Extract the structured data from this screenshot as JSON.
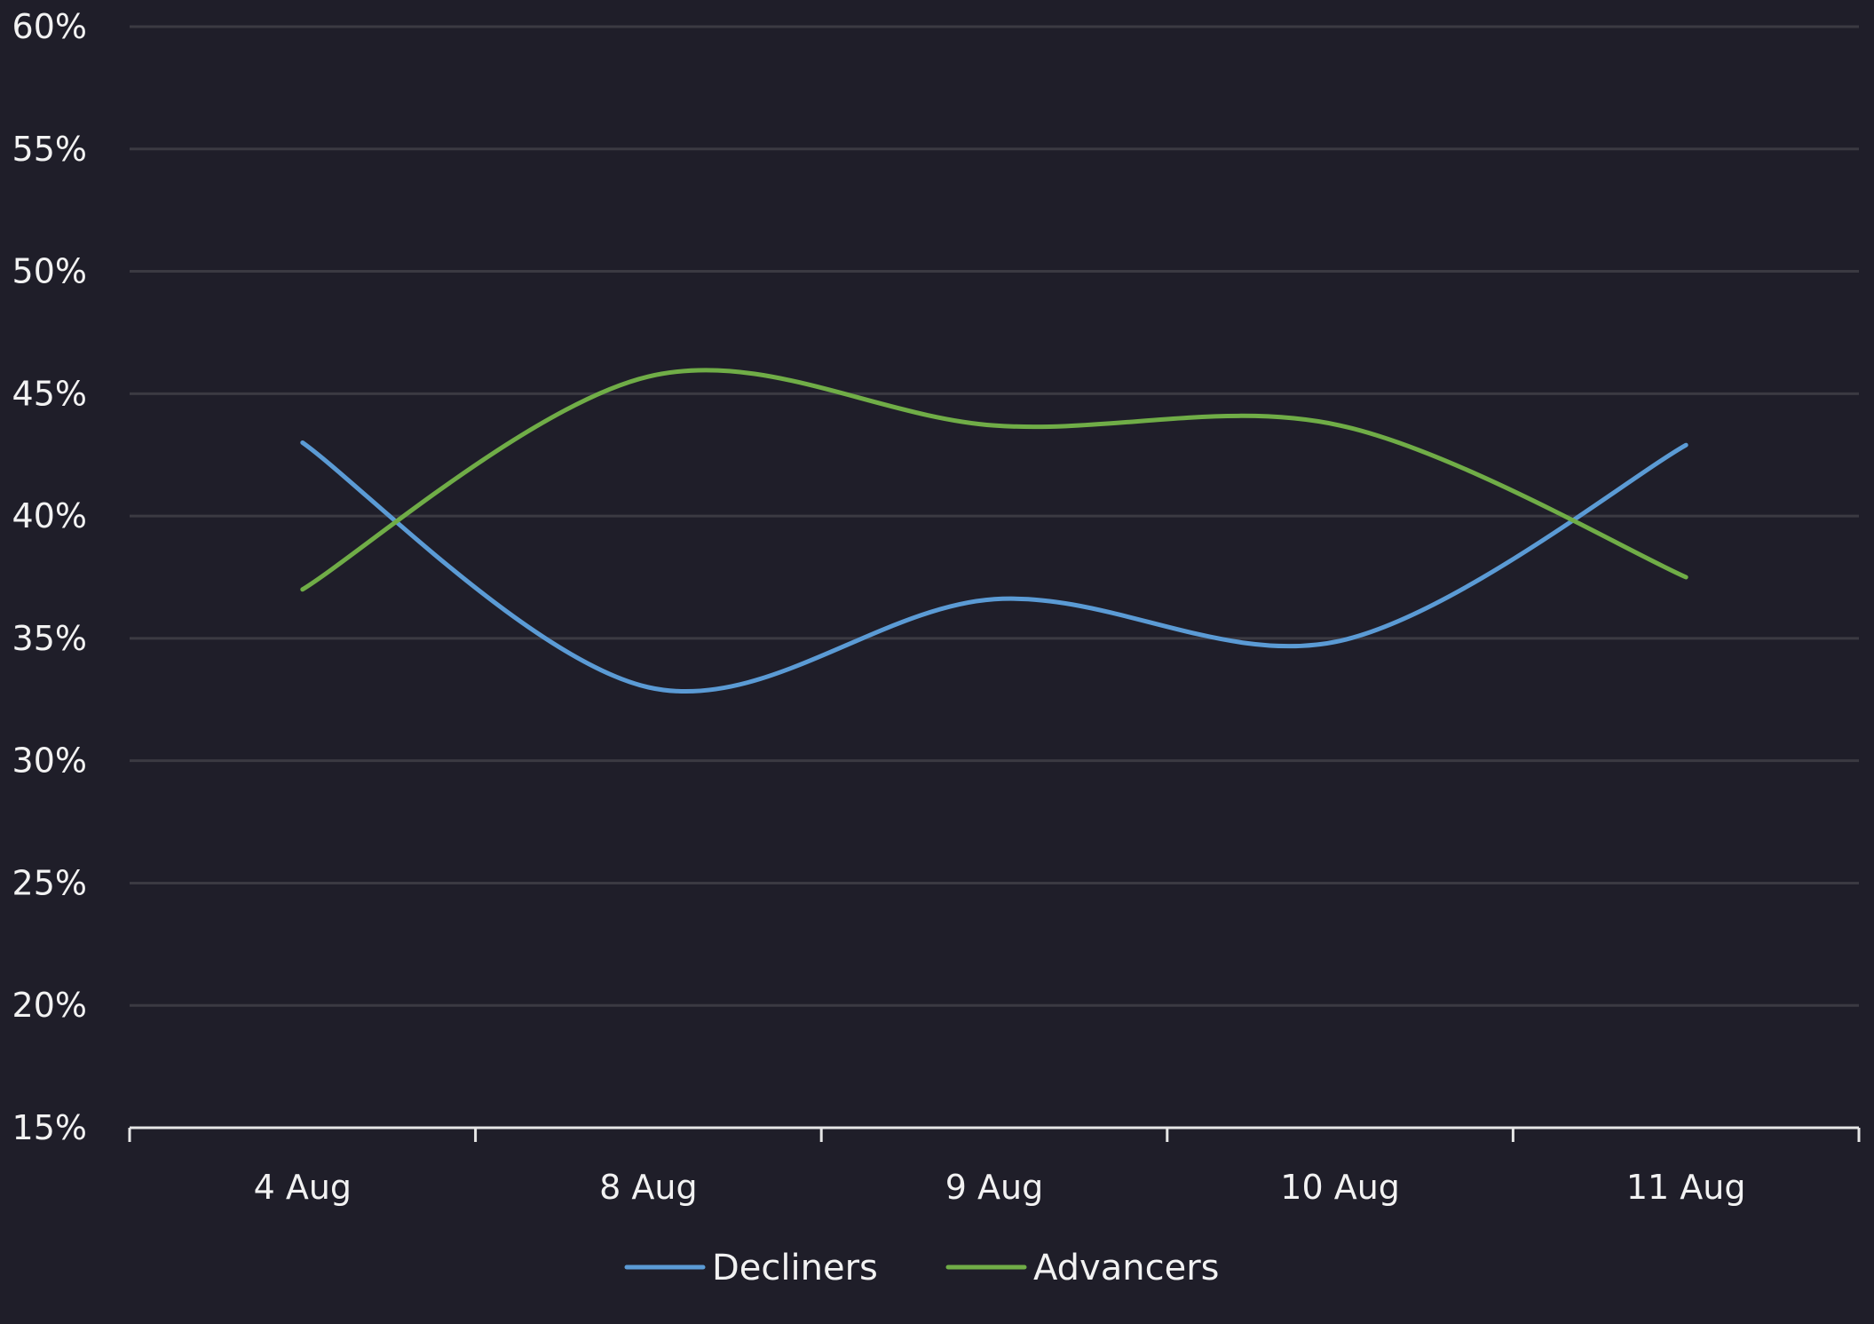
{
  "chart_data": {
    "type": "line",
    "smooth": true,
    "categories": [
      "4 Aug",
      "8 Aug",
      "9 Aug",
      "10 Aug",
      "11 Aug"
    ],
    "series": [
      {
        "name": "Decliners",
        "color": "#5b9bd5",
        "values": [
          43.0,
          33.0,
          36.6,
          34.9,
          42.9
        ]
      },
      {
        "name": "Advancers",
        "color": "#70ad47",
        "values": [
          37.0,
          45.7,
          43.7,
          43.7,
          37.5
        ]
      }
    ],
    "y_ticks": [
      "15%",
      "20%",
      "25%",
      "30%",
      "35%",
      "40%",
      "45%",
      "50%",
      "55%",
      "60%"
    ],
    "ylim": [
      15,
      60
    ],
    "y_unit": "%",
    "grid": true,
    "legend_position": "bottom",
    "colors": {
      "background": "#1f1e29",
      "grid": "#3b3a42",
      "axis": "#e6e6e6",
      "text": "#f2f2f2"
    }
  }
}
